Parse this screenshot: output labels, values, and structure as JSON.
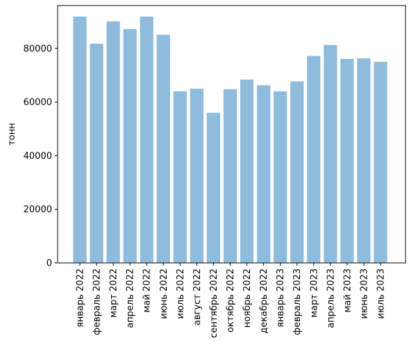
{
  "chart_data": {
    "type": "bar",
    "title": "",
    "xlabel": "",
    "ylabel": "тонн",
    "ylim": [
      0,
      96000
    ],
    "yticks": [
      0,
      20000,
      40000,
      60000,
      80000
    ],
    "grid": false,
    "legend": "none",
    "bar_color": "#8fbbdc",
    "categories": [
      "январь 2022",
      "февраль 2022",
      "март 2022",
      "апрель 2022",
      "май 2022",
      "июнь 2022",
      "июль 2022",
      "август 2022",
      "сентябрь 2022",
      "октябрь 2022",
      "ноябрь 2022",
      "декабрь 2022",
      "январь 2023",
      "февраль 2023",
      "март 2023",
      "апрель 2023",
      "май 2023",
      "июнь 2023",
      "июль 2023"
    ],
    "values": [
      91900,
      81800,
      90100,
      87200,
      91900,
      85100,
      64000,
      65000,
      56000,
      64800,
      68400,
      66300,
      64000,
      67700,
      77200,
      81300,
      76100,
      76300,
      75000
    ]
  }
}
